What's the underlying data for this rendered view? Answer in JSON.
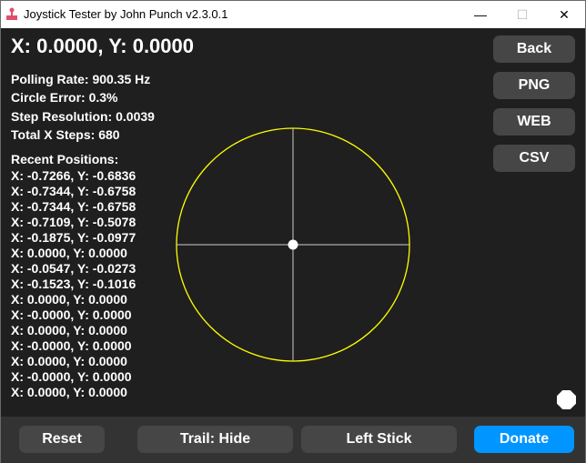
{
  "window": {
    "title": "Joystick Tester by John Punch v2.3.0.1",
    "controls": [
      "minimize",
      "maximize",
      "close"
    ]
  },
  "main": {
    "coordinates": "X: 0.0000, Y: 0.0000",
    "stats": [
      "Polling Rate: 900.35 Hz",
      "Circle Error: 0.3%",
      "Step Resolution: 0.0039",
      "Total X Steps: 680"
    ],
    "recent_title": "Recent Positions:",
    "recent": [
      "X: -0.7266, Y: -0.6836",
      "X: -0.7344, Y: -0.6758",
      "X: -0.7344, Y: -0.6758",
      "X: -0.7109, Y: -0.5078",
      "X: -0.1875, Y: -0.0977",
      "X: 0.0000, Y: 0.0000",
      "X: -0.0547, Y: -0.0273",
      "X: -0.1523, Y: -0.1016",
      "X: 0.0000, Y: 0.0000",
      "X: -0.0000, Y: 0.0000",
      "X: 0.0000, Y: 0.0000",
      "X: -0.0000, Y: 0.0000",
      "X: 0.0000, Y: 0.0000",
      "X: -0.0000, Y: 0.0000",
      "X: 0.0000, Y: 0.0000"
    ],
    "stick_position": {
      "x": 0.0,
      "y": 0.0
    }
  },
  "side_buttons": {
    "back": "Back",
    "png": "PNG",
    "web": "WEB",
    "csv": "CSV"
  },
  "bottom_buttons": {
    "reset": "Reset",
    "trail": "Trail: Hide",
    "stick": "Left Stick",
    "donate": "Donate"
  },
  "colors": {
    "circle": "#ffff00",
    "donate": "#0095ff",
    "background": "#1f1f1f",
    "button": "#464646"
  }
}
